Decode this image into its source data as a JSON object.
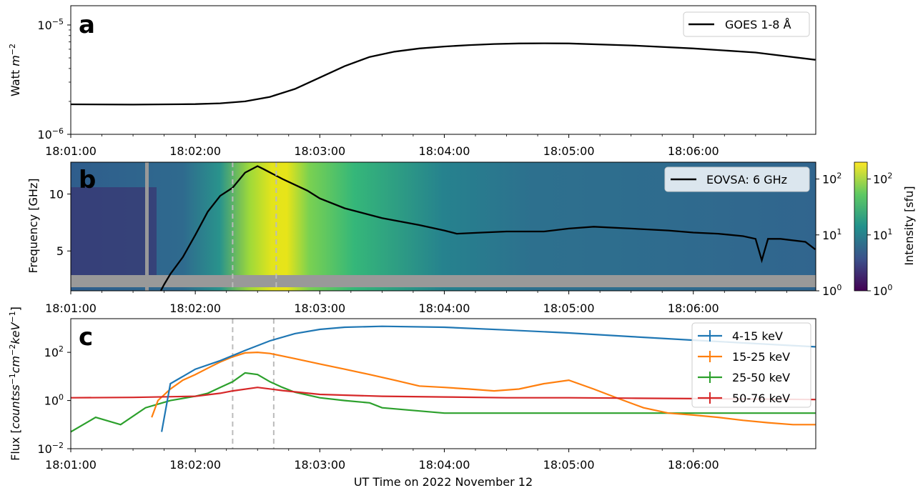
{
  "xlabel": "UT Time on 2022 November 12",
  "x_ticks": [
    "18:01:00",
    "18:02:00",
    "18:03:00",
    "18:04:00",
    "18:05:00",
    "18:06:00"
  ],
  "colors": {
    "goes": "#000000",
    "eovsa": "#000000",
    "band1": "#1f77b4",
    "band2": "#ff7f0e",
    "band3": "#2ca02c",
    "band4": "#d62728",
    "mask": "#999999",
    "dashed": "#bbbbbb"
  },
  "chart_data": [
    {
      "panel_label": "a",
      "type": "line",
      "ylabel_html": "Watt m⁻²",
      "ylabel_parts": [
        "Watt ",
        "m",
        "−2"
      ],
      "yscale": "log",
      "ylim": [
        1e-06,
        1.5e-05
      ],
      "ytick_labels": [
        {
          "base": "10",
          "exp": "−6",
          "value": 1e-06
        },
        {
          "base": "10",
          "exp": "−5",
          "value": 1e-05
        }
      ],
      "xlim_min": [
        0,
        359
      ],
      "legend": "GOES 1-8 Å",
      "legend_placement": "upper-right",
      "series": [
        {
          "name": "GOES 1-8 Å",
          "x_min": [
            0,
            0.5,
            1.0,
            1.2,
            1.4,
            1.6,
            1.8,
            2.0,
            2.2,
            2.4,
            2.6,
            2.8,
            3.0,
            3.2,
            3.4,
            3.6,
            3.8,
            4.0,
            4.5,
            5.0,
            5.5,
            5.98
          ],
          "y": [
            1.88e-06,
            1.87e-06,
            1.89e-06,
            1.92e-06,
            2e-06,
            2.2e-06,
            2.6e-06,
            3.3e-06,
            4.2e-06,
            5.1e-06,
            5.7e-06,
            6.1e-06,
            6.35e-06,
            6.55e-06,
            6.7e-06,
            6.78e-06,
            6.8e-06,
            6.78e-06,
            6.5e-06,
            6.1e-06,
            5.6e-06,
            4.8e-06
          ]
        }
      ]
    },
    {
      "panel_label": "b",
      "type": "heatmap",
      "ylabel": "Frequency [GHz]",
      "yticks": [
        5,
        10
      ],
      "ylim": [
        1.5,
        12.8
      ],
      "colorbar_label": "Intensity [sfu]",
      "colorbar_ticks": [
        {
          "base": "10",
          "exp": "0",
          "value": 1
        },
        {
          "base": "10",
          "exp": "1",
          "value": 10
        },
        {
          "base": "10",
          "exp": "2",
          "value": 100
        }
      ],
      "right_axis_ticks": [
        {
          "base": "10",
          "exp": "0",
          "value": 1
        },
        {
          "base": "10",
          "exp": "1",
          "value": 10
        },
        {
          "base": "10",
          "exp": "2",
          "value": 100
        }
      ],
      "legend": "EOVSA: 6 GHz",
      "legend_placement": "upper-right",
      "dashed_lines_min": [
        1.3,
        1.65
      ],
      "series": [
        {
          "name": "EOVSA: 6 GHz",
          "x_min": [
            0.66,
            0.7,
            0.75,
            0.8,
            0.9,
            1.0,
            1.1,
            1.2,
            1.3,
            1.4,
            1.5,
            1.55,
            1.7,
            1.9,
            2.0,
            2.2,
            2.5,
            2.8,
            3.0,
            3.1,
            3.3,
            3.5,
            3.8,
            4.0,
            4.2,
            4.5,
            4.8,
            5.0,
            5.2,
            5.4,
            5.5,
            5.55,
            5.6,
            5.7,
            5.9,
            5.98
          ],
          "y_sfu": [
            0.6,
            0.8,
            1.3,
            2.0,
            4.0,
            10,
            26,
            50,
            70,
            130,
            170,
            150,
            100,
            62,
            45,
            30,
            20,
            15,
            12,
            10.5,
            11,
            11.5,
            11.5,
            13,
            14,
            13,
            12,
            11,
            10.5,
            9.5,
            8.5,
            3.5,
            8.5,
            8.5,
            7.5,
            5.5
          ]
        }
      ]
    },
    {
      "panel_label": "c",
      "type": "line",
      "ylabel_parts": [
        "Flux [",
        "countss",
        "−1",
        "cm",
        "−2",
        "keV",
        "−1",
        "]"
      ],
      "yscale": "log",
      "ylim": [
        0.01,
        2500
      ],
      "ytick_labels": [
        {
          "base": "10",
          "exp": "−2",
          "value": 0.01
        },
        {
          "base": "10",
          "exp": "0",
          "value": 1
        },
        {
          "base": "10",
          "exp": "2",
          "value": 100
        }
      ],
      "legend_placement": "upper-right",
      "dashed_lines_min": [
        1.3,
        1.63
      ],
      "series": [
        {
          "name": "4-15 keV",
          "x_min": [
            0.73,
            0.8,
            0.9,
            1.0,
            1.2,
            1.4,
            1.6,
            1.8,
            2.0,
            2.2,
            2.5,
            3.0,
            3.5,
            4.0,
            4.5,
            5.0,
            5.5,
            5.98
          ],
          "y": [
            0.05,
            5,
            10,
            20,
            45,
            120,
            300,
            600,
            900,
            1100,
            1200,
            1100,
            850,
            640,
            450,
            320,
            230,
            170
          ]
        },
        {
          "name": "15-25 keV",
          "x_min": [
            0.65,
            0.7,
            0.8,
            0.9,
            1.0,
            1.1,
            1.2,
            1.3,
            1.4,
            1.5,
            1.6,
            1.8,
            2.0,
            2.2,
            2.4,
            2.6,
            2.8,
            3.0,
            3.2,
            3.4,
            3.6,
            3.8,
            4.0,
            4.2,
            4.4,
            4.6,
            4.8,
            5.0,
            5.2,
            5.4,
            5.6,
            5.8,
            5.98
          ],
          "y": [
            0.2,
            1.0,
            3.0,
            7,
            12,
            22,
            40,
            65,
            95,
            100,
            90,
            55,
            33,
            20,
            12,
            7,
            4,
            3.5,
            3,
            2.5,
            3,
            5,
            7,
            3,
            1.2,
            0.5,
            0.3,
            0.25,
            0.2,
            0.15,
            0.12,
            0.1,
            0.1
          ]
        },
        {
          "name": "25-50 keV",
          "x_min": [
            0.0,
            0.2,
            0.4,
            0.6,
            0.8,
            1.0,
            1.1,
            1.2,
            1.3,
            1.4,
            1.5,
            1.6,
            1.7,
            1.8,
            2.0,
            2.2,
            2.4,
            2.5,
            3.0,
            3.5,
            4.0,
            4.5,
            5.0,
            5.5,
            5.98
          ],
          "y": [
            0.05,
            0.2,
            0.1,
            0.5,
            1.0,
            1.5,
            2.0,
            3.5,
            6,
            14,
            12,
            6,
            3.5,
            2.2,
            1.3,
            1.0,
            0.8,
            0.5,
            0.3,
            0.3,
            0.3,
            0.3,
            0.3,
            0.3,
            0.3
          ]
        },
        {
          "name": "50-76 keV",
          "x_min": [
            0,
            0.5,
            1.0,
            1.2,
            1.3,
            1.5,
            1.7,
            2.0,
            2.5,
            3.0,
            3.5,
            4.0,
            4.5,
            5.0,
            5.5,
            5.98
          ],
          "y": [
            1.3,
            1.35,
            1.5,
            2.0,
            2.5,
            3.5,
            2.6,
            1.8,
            1.5,
            1.4,
            1.3,
            1.3,
            1.25,
            1.2,
            1.15,
            1.1
          ]
        }
      ]
    }
  ]
}
